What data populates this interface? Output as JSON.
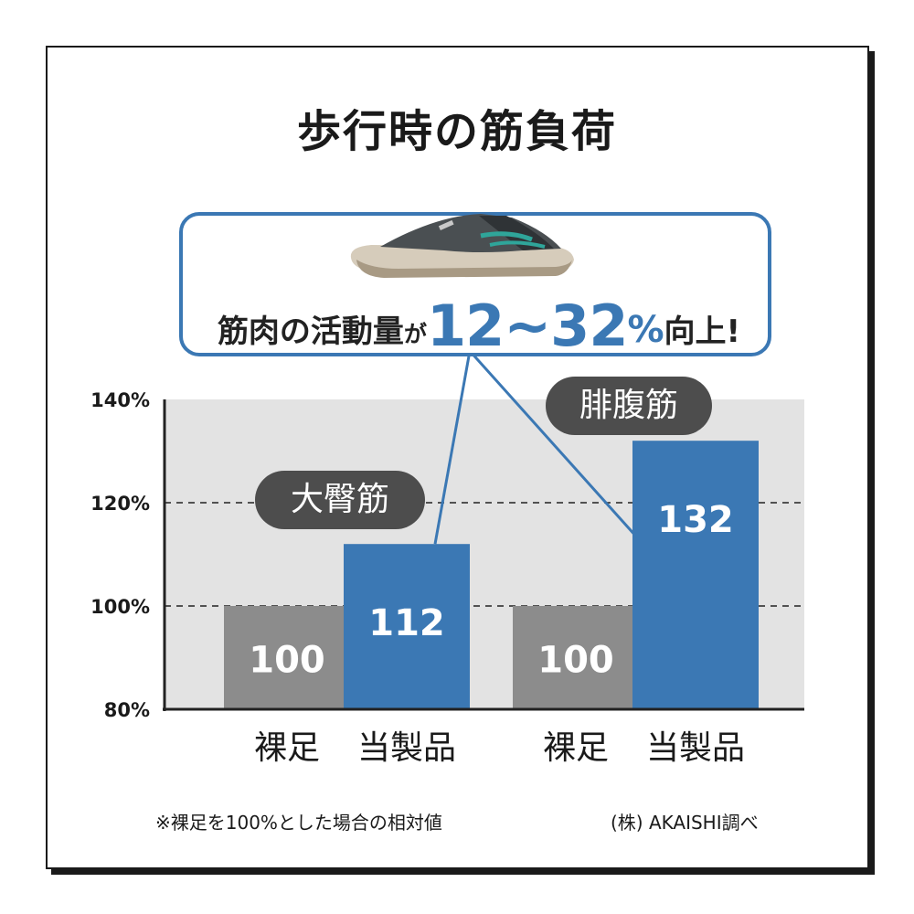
{
  "title": "歩行時の筋負荷",
  "callout": {
    "text_a": "筋肉の活動量",
    "text_b": "が",
    "range": "12~32",
    "pct_sign": "%",
    "text_c": "向上!"
  },
  "groups": [
    {
      "label": "大臀筋"
    },
    {
      "label": "腓腹筋"
    }
  ],
  "notes": {
    "left": "※裸足を100%とした場合の相対値",
    "right": "(株) AKAISHI調べ"
  },
  "colors": {
    "accent": "#3b78b4",
    "barefoot": "#8c8c8c",
    "plot_bg": "#e3e3e3",
    "tag": "#4d4d4d"
  },
  "chart_data": {
    "type": "bar",
    "title": "歩行時の筋負荷",
    "categories": [
      "裸足",
      "当製品",
      "裸足",
      "当製品"
    ],
    "groups": [
      "大臀筋",
      "腓腹筋"
    ],
    "values": [
      100,
      112,
      100,
      132
    ],
    "value_labels": [
      "100",
      "112",
      "100",
      "132"
    ],
    "xlabel": "",
    "ylabel": "",
    "ylim": [
      80,
      140
    ],
    "yticks": [
      80,
      100,
      120,
      140
    ],
    "ytick_labels": [
      "80%",
      "100%",
      "120%",
      "140%"
    ],
    "grid": "dashed at 100% and 120%"
  }
}
